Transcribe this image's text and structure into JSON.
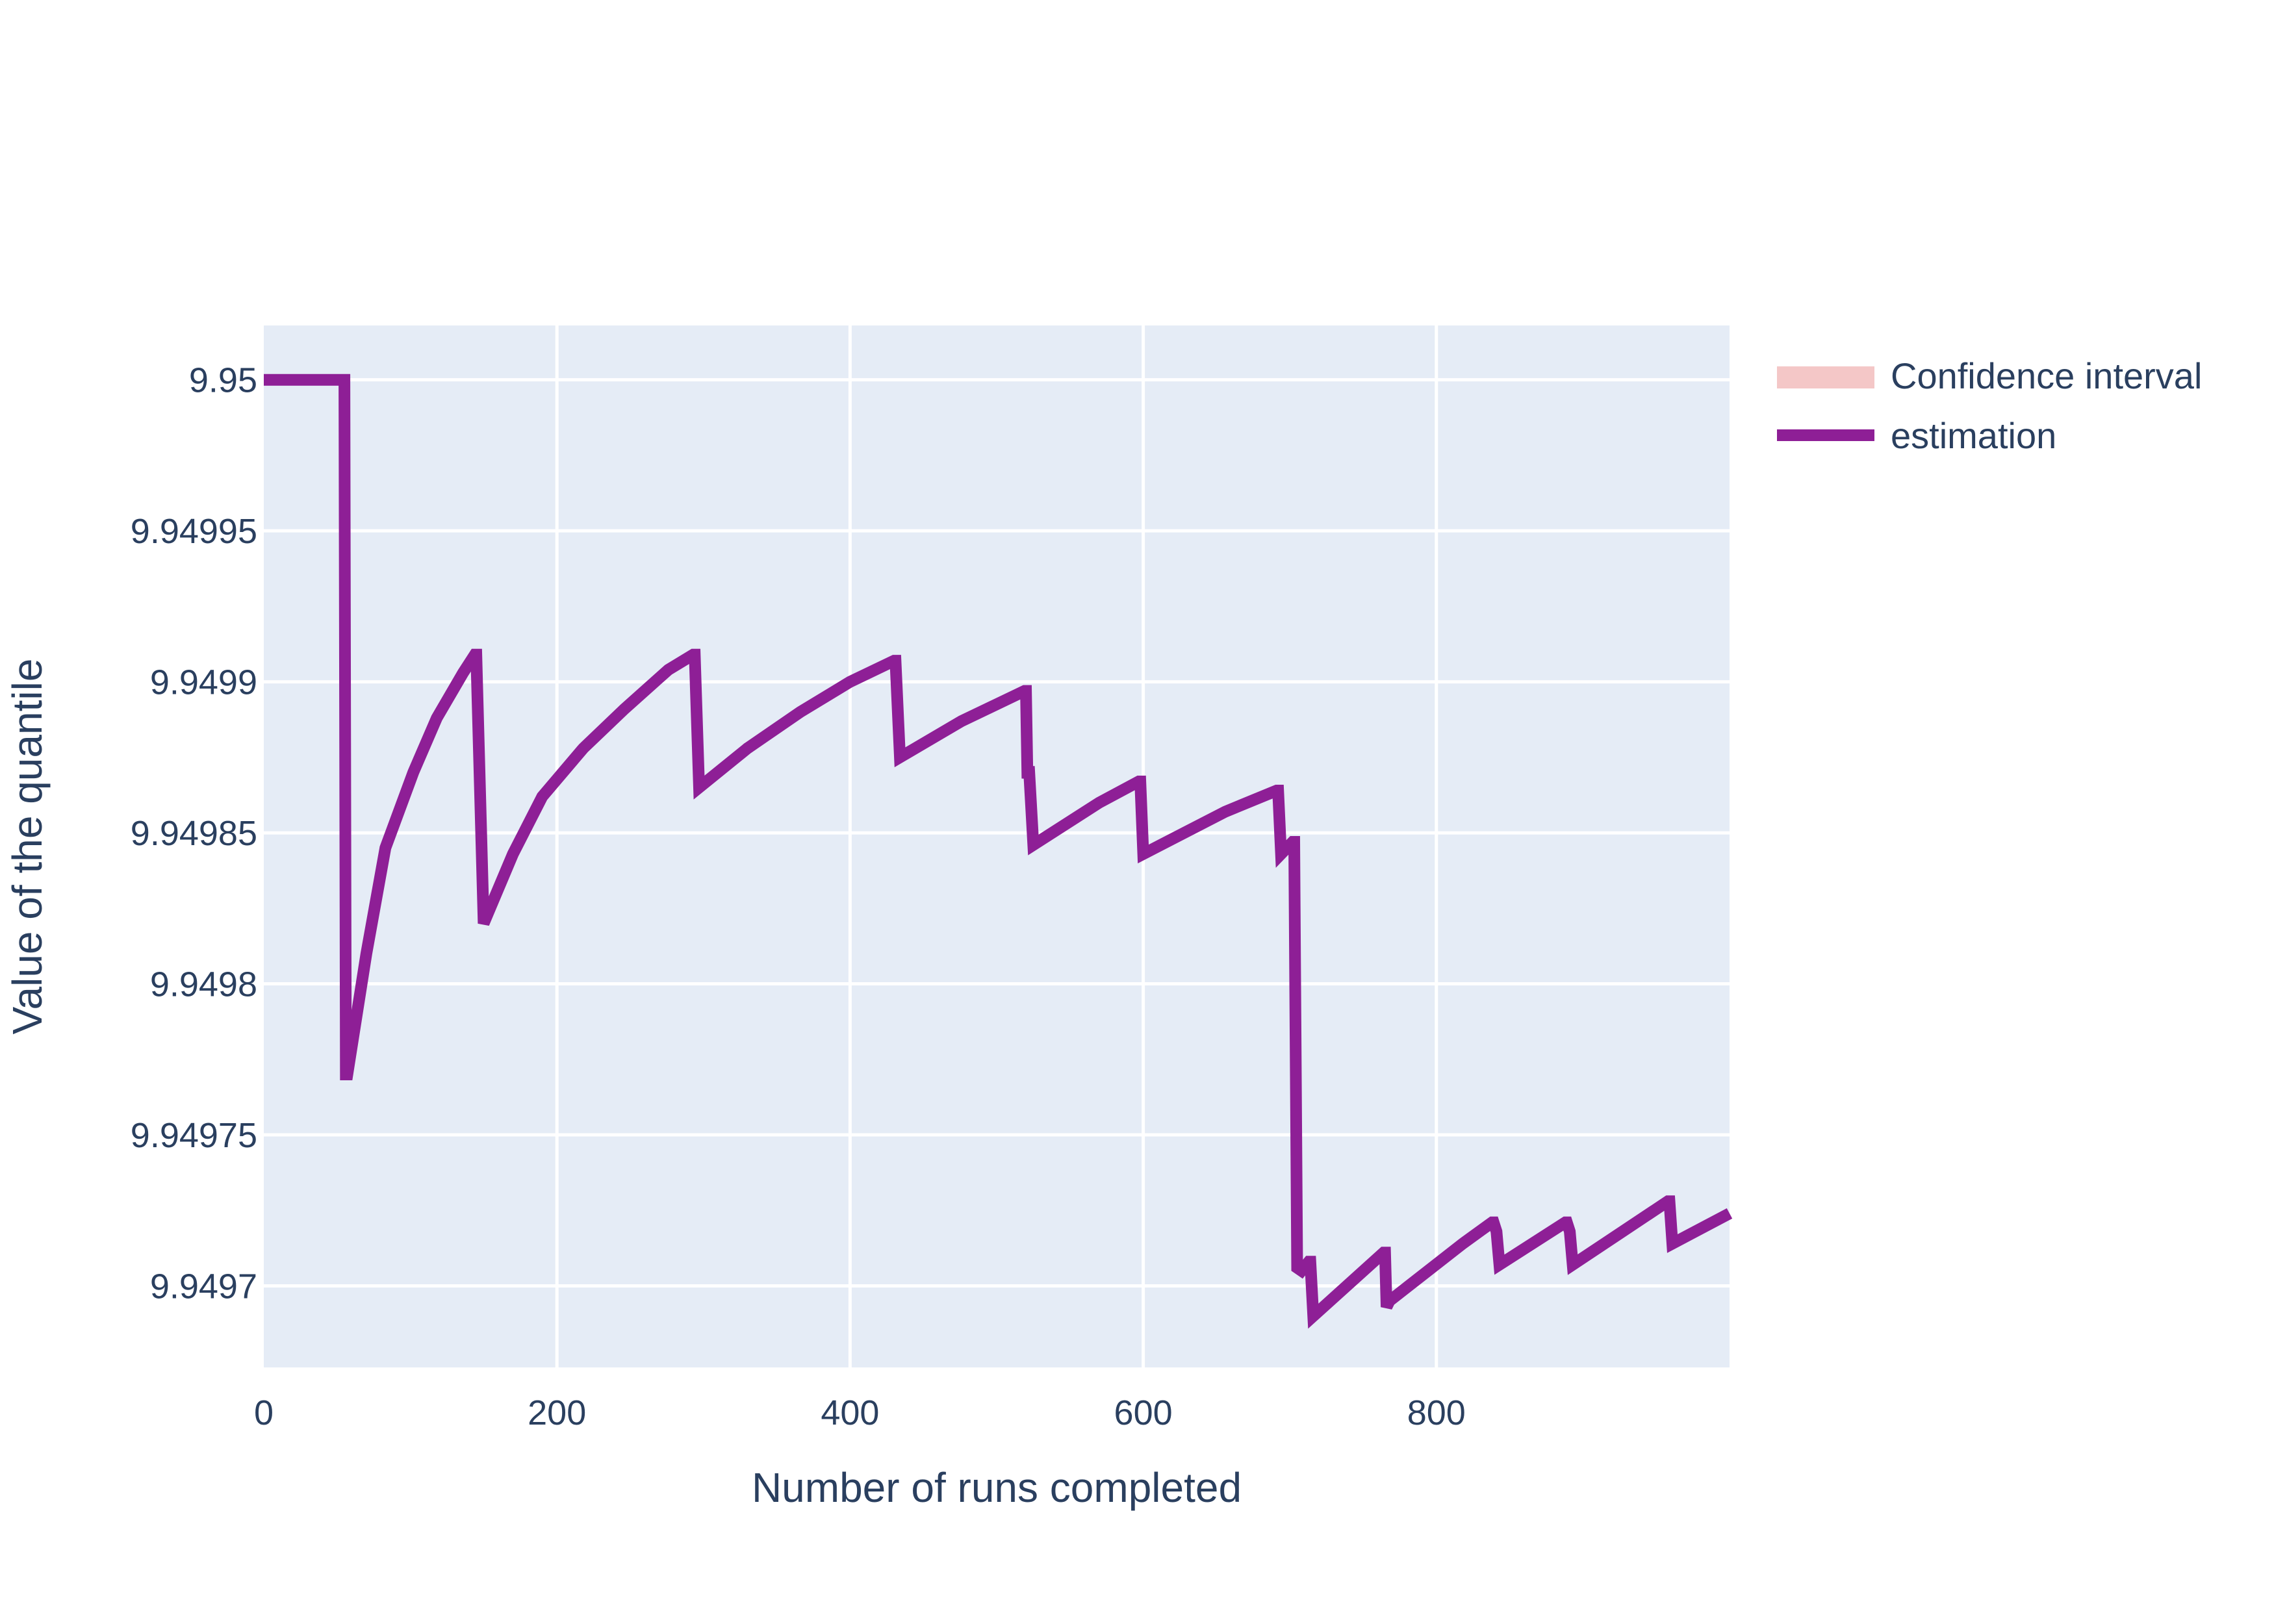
{
  "chart_data": {
    "type": "line",
    "title": "",
    "xlabel": "Number of runs completed",
    "ylabel": "Value of the quantile",
    "xlim": [
      0,
      1000
    ],
    "ylim": [
      9.949673,
      9.950018
    ],
    "x_ticks": [
      0,
      200,
      400,
      600,
      800
    ],
    "x_tick_labels": [
      "0",
      "200",
      "400",
      "600",
      "800"
    ],
    "y_ticks": [
      9.9497,
      9.94975,
      9.9498,
      9.94985,
      9.9499,
      9.94995,
      9.95
    ],
    "y_tick_labels": [
      "9.9497",
      "9.94975",
      "9.9498",
      "9.94985",
      "9.9499",
      "9.94995",
      "9.95"
    ],
    "grid": true,
    "legend_position": "top-right",
    "plot_background": "#e5ecf6",
    "legend": [
      {
        "name": "Confidence interval",
        "color": "#f4c7c7"
      },
      {
        "name": "estimation",
        "color": "#8e1f96"
      }
    ],
    "series": [
      {
        "name": "estimation",
        "color": "#8e1f96",
        "x": [
          0,
          55,
          56,
          57,
          70,
          83,
          102,
          118,
          136,
          144,
          145,
          150,
          170,
          190,
          218,
          246,
          276,
          293,
          294,
          297,
          330,
          366,
          400,
          430,
          431,
          434,
          476,
          519,
          520,
          521,
          522,
          525,
          570,
          597,
          598,
          600,
          656,
          691,
          692,
          694,
          702,
          703,
          705,
          708,
          713,
          714,
          716,
          764,
          765,
          766,
          768,
          818,
          838,
          839,
          841,
          843,
          888,
          889,
          891,
          893,
          958,
          959,
          961,
          1000
        ],
        "y": [
          9.95,
          9.95,
          9.94977,
          9.94977,
          9.94981,
          9.949845,
          9.94987,
          9.949888,
          9.949903,
          9.949909,
          9.949909,
          9.94982,
          9.949843,
          9.949862,
          9.949878,
          9.949891,
          9.949904,
          9.949909,
          9.949909,
          9.949865,
          9.949878,
          9.94989,
          9.9499,
          9.949907,
          9.949907,
          9.949875,
          9.949887,
          9.949897,
          9.949897,
          9.949868,
          9.949872,
          9.949846,
          9.94986,
          9.949867,
          9.949867,
          9.949843,
          9.949857,
          9.949864,
          9.949864,
          9.949843,
          9.949847,
          9.949847,
          9.949706,
          9.949705,
          9.949708,
          9.949708,
          9.94969,
          9.949711,
          9.949711,
          9.949693,
          9.949695,
          9.949714,
          9.949721,
          9.949721,
          9.949718,
          9.949707,
          9.949721,
          9.949721,
          9.949718,
          9.949707,
          9.949728,
          9.949728,
          9.949714,
          9.949724
        ]
      }
    ]
  }
}
